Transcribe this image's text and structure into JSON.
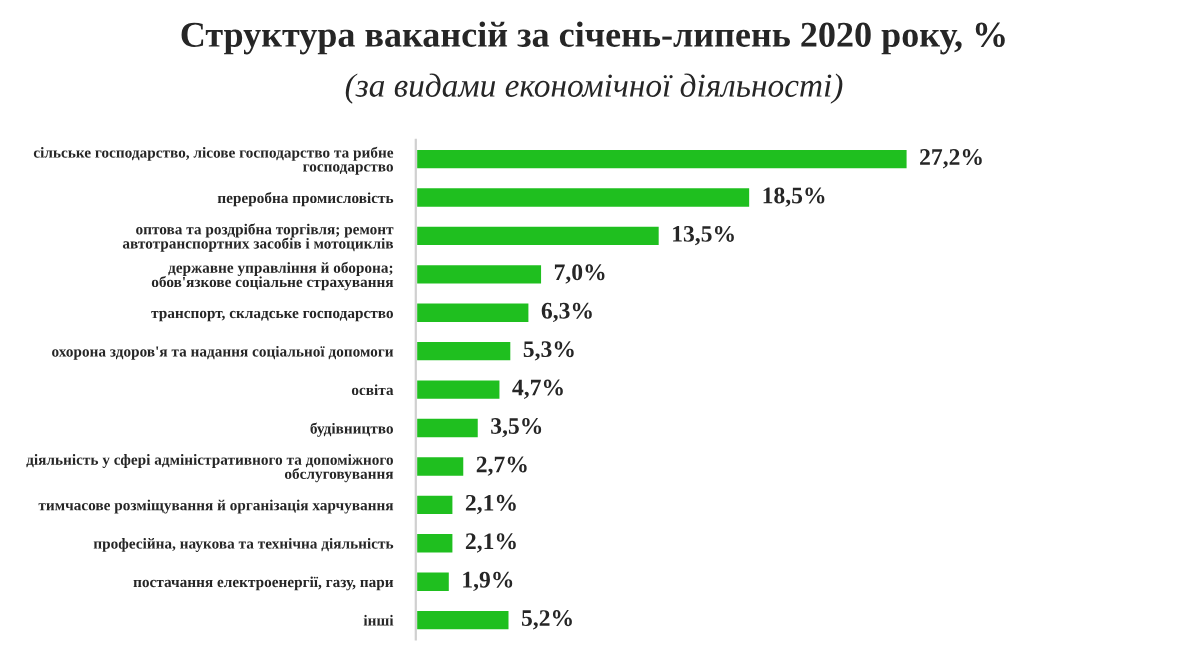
{
  "chart_data": {
    "type": "bar",
    "orientation": "horizontal",
    "title": "Структура вакансій за січень-липень 2020 року, %",
    "subtitle": "(за видами економічної діяльності)",
    "categories": [
      "сільське господарство, лісове господарство та рибне\nгосподарство",
      "переробна промисловість",
      "оптова та роздрібна торгівля; ремонт\nавтотранспортних засобів і мотоциклів",
      "державне управління й оборона;\nобов'язкове соціальне страхування",
      "транспорт, складське господарство",
      "охорона здоров'я та надання соціальної допомоги",
      "освіта",
      "будівництво",
      "діяльність у сфері адміністративного та допоміжного\nобслуговування",
      "тимчасове розміщування й організація харчування",
      "професійна, наукова та технічна діяльність",
      "постачання електроенергії, газу, пари",
      "інші"
    ],
    "values": [
      27.2,
      18.5,
      13.5,
      7.0,
      6.3,
      5.3,
      4.7,
      3.5,
      2.7,
      2.1,
      2.1,
      1.9,
      5.2
    ],
    "value_labels": [
      "27,2%",
      "18,5%",
      "13,5%",
      "7,0%",
      "6,3%",
      "5,3%",
      "4,7%",
      "3,5%",
      "2,7%",
      "2,1%",
      "2,1%",
      "1,9%",
      "5,2%"
    ],
    "color": "#1fbf1f",
    "tick_labels": "y",
    "grid": false,
    "legend": false
  }
}
